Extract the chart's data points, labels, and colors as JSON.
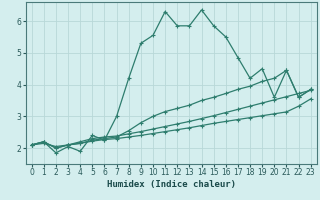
{
  "xlabel": "Humidex (Indice chaleur)",
  "bg_color": "#d4eeee",
  "grid_color": "#b8d8d8",
  "line_color": "#2e7d6e",
  "xlim": [
    -0.5,
    23.5
  ],
  "ylim": [
    1.5,
    6.6
  ],
  "yticks": [
    2,
    3,
    4,
    5,
    6
  ],
  "xticks": [
    0,
    1,
    2,
    3,
    4,
    5,
    6,
    7,
    8,
    9,
    10,
    11,
    12,
    13,
    14,
    15,
    16,
    17,
    18,
    19,
    20,
    21,
    22,
    23
  ],
  "series1_x": [
    0,
    1,
    2,
    3,
    4,
    5,
    6,
    7,
    8,
    9,
    10,
    11,
    12,
    13,
    14,
    15,
    16,
    17,
    18,
    19,
    20,
    21,
    22,
    23
  ],
  "series1_y": [
    2.1,
    2.2,
    1.85,
    2.05,
    1.9,
    2.4,
    2.25,
    3.0,
    4.2,
    5.3,
    5.55,
    6.3,
    5.85,
    5.85,
    6.35,
    5.85,
    5.5,
    4.85,
    4.2,
    4.5,
    3.6,
    4.45,
    3.6,
    3.85
  ],
  "series2_x": [
    0,
    1,
    2,
    3,
    4,
    5,
    6,
    7,
    8,
    9,
    10,
    11,
    12,
    13,
    14,
    15,
    16,
    17,
    18,
    19,
    20,
    21,
    22,
    23
  ],
  "series2_y": [
    2.1,
    2.15,
    2.05,
    2.1,
    2.15,
    2.25,
    2.3,
    2.35,
    2.55,
    2.8,
    3.0,
    3.15,
    3.25,
    3.35,
    3.5,
    3.6,
    3.72,
    3.85,
    3.95,
    4.1,
    4.2,
    4.45,
    3.6,
    3.85
  ],
  "series3_x": [
    0,
    1,
    2,
    3,
    4,
    5,
    6,
    7,
    8,
    9,
    10,
    11,
    12,
    13,
    14,
    15,
    16,
    17,
    18,
    19,
    20,
    21,
    22,
    23
  ],
  "series3_y": [
    2.1,
    2.2,
    2.0,
    2.1,
    2.2,
    2.3,
    2.35,
    2.38,
    2.45,
    2.52,
    2.6,
    2.68,
    2.76,
    2.84,
    2.93,
    3.02,
    3.12,
    3.22,
    3.32,
    3.42,
    3.52,
    3.62,
    3.72,
    3.82
  ],
  "series4_x": [
    0,
    1,
    2,
    3,
    4,
    5,
    6,
    7,
    8,
    9,
    10,
    11,
    12,
    13,
    14,
    15,
    16,
    17,
    18,
    19,
    20,
    21,
    22,
    23
  ],
  "series4_y": [
    2.1,
    2.2,
    2.0,
    2.1,
    2.15,
    2.22,
    2.27,
    2.3,
    2.35,
    2.4,
    2.46,
    2.52,
    2.58,
    2.64,
    2.71,
    2.78,
    2.84,
    2.9,
    2.96,
    3.02,
    3.08,
    3.14,
    3.32,
    3.55
  ]
}
